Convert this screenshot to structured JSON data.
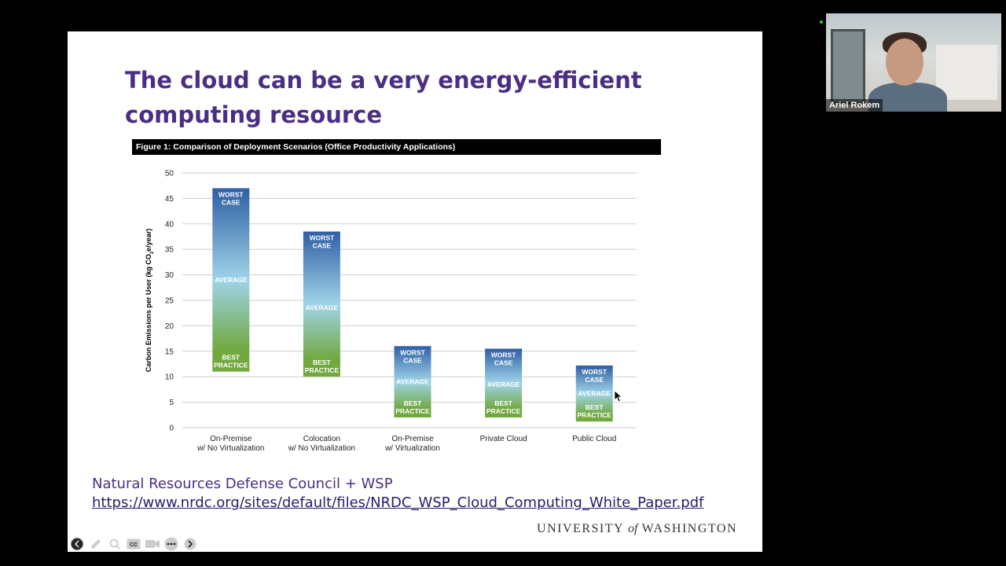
{
  "slide": {
    "title_line1": "The cloud can be a very energy-efficient",
    "title_line2": "computing resource",
    "figure_header": "Figure 1: Comparison of Deployment Scenarios (Office Productivity Applications)",
    "credit": "Natural Resources Defense Council + WSP",
    "link": "https://www.nrdc.org/sites/default/files/NRDC_WSP_Cloud_Computing_White_Paper.pdf",
    "logo_part1": "UNIVERSITY",
    "logo_of": "of",
    "logo_part2": "WASHINGTON"
  },
  "chart_data": {
    "type": "bar",
    "ylabel": "Carbon Emissions per User (kg CO2e/year)",
    "ylim": [
      0,
      50
    ],
    "yticks": [
      0,
      5,
      10,
      15,
      20,
      25,
      30,
      35,
      40,
      45,
      50
    ],
    "categories": [
      [
        "On-Premise",
        "w/ No Virtualization"
      ],
      [
        "Colocation",
        "w/ No Virtualization"
      ],
      [
        "On-Premise",
        "w/ Virtualization"
      ],
      [
        "Private Cloud"
      ],
      [
        "Public Cloud"
      ]
    ],
    "ranges": [
      {
        "best": 11,
        "average": 29,
        "worst": 47
      },
      {
        "best": 10,
        "average": 23.5,
        "worst": 38.5
      },
      {
        "best": 2,
        "average": 9,
        "worst": 16
      },
      {
        "best": 2,
        "average": 8.5,
        "worst": 15.5
      },
      {
        "best": 1.2,
        "average": 6.7,
        "worst": 12.2
      }
    ],
    "labels": {
      "worst_line1": "WORST",
      "worst_line2": "CASE",
      "average": "AVERAGE",
      "best_line1": "BEST",
      "best_line2": "PRACTICE"
    },
    "colors": {
      "top": "#2f5fa5",
      "middle": "#9fd3e8",
      "bottom": "#72a93f",
      "grid": "#cfcfcf"
    }
  },
  "toolbar": {
    "icons": [
      "back-arrow-icon",
      "pen-icon",
      "zoom-icon",
      "captions-icon",
      "camera-icon",
      "more-icon",
      "forward-arrow-icon"
    ]
  },
  "video": {
    "participant_name": "Ariel Rokem"
  }
}
